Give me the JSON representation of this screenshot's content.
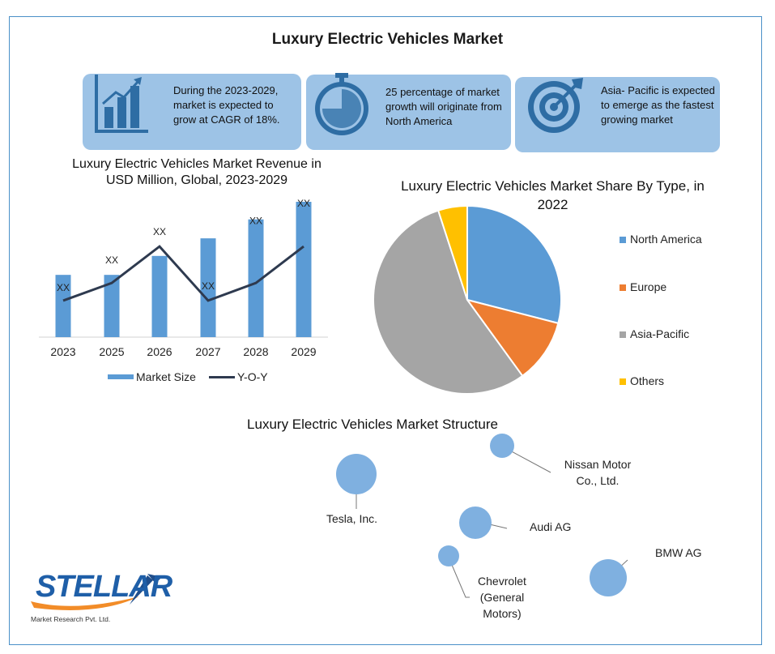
{
  "title": "Luxury Electric Vehicles Market",
  "cards": [
    {
      "text": "During the 2023-2029, market is expected to grow at CAGR of 18%.",
      "icon": "bar-chart-icon"
    },
    {
      "text": "25 percentage of market growth will originate from North America",
      "icon": "stopwatch-icon"
    },
    {
      "text": "Asia- Pacific is expected to emerge as the fastest growing market",
      "icon": "target-icon"
    }
  ],
  "bar_chart_title": "Luxury Electric Vehicles  Market Revenue in USD Million, Global, 2023-2029",
  "pie_chart_title": "Luxury Electric Vehicles Market Share By Type, in 2022",
  "structure_title": "Luxury Electric Vehicles Market Structure",
  "companies": [
    "Nissan Motor Co., Ltd.",
    "Tesla, Inc.",
    "Audi AG",
    "BMW AG",
    "Chevrolet (General Motors)"
  ],
  "logo": {
    "text": "STELLAR",
    "subtext": "Market Research Pvt. Ltd."
  },
  "colors": {
    "bar": "#5b9bd5",
    "line": "#2e3a4f",
    "card": "#9dc3e6",
    "north_america": "#5b9bd5",
    "europe": "#ed7d31",
    "asia_pacific": "#a5a5a5",
    "others": "#ffc000",
    "bubble": "#7fb0e0"
  },
  "chart_data": [
    {
      "type": "bar",
      "title": "Luxury Electric Vehicles  Market Revenue in USD Million, Global, 2023-2029",
      "categories": [
        "2023",
        "2025",
        "2026",
        "2027",
        "2028",
        "2029"
      ],
      "series": [
        {
          "name": "Market Size",
          "type": "bar",
          "values": [
            46,
            46,
            60,
            73,
            87,
            100
          ]
        },
        {
          "name": "Y-O-Y",
          "type": "line",
          "values": [
            27,
            40,
            67,
            27,
            40,
            67
          ]
        }
      ],
      "data_labels": [
        "XX",
        "XX",
        "XX",
        "XX",
        "XX",
        "XX"
      ],
      "ylim": [
        0,
        100
      ],
      "grid": false,
      "legend": "bottom"
    },
    {
      "type": "pie",
      "title": "Luxury Electric Vehicles Market Share By Type, in 2022",
      "categories": [
        "North America",
        "Europe",
        "Asia-Pacific",
        "Others"
      ],
      "values": [
        29,
        11,
        55,
        5
      ],
      "legend": "right"
    }
  ]
}
